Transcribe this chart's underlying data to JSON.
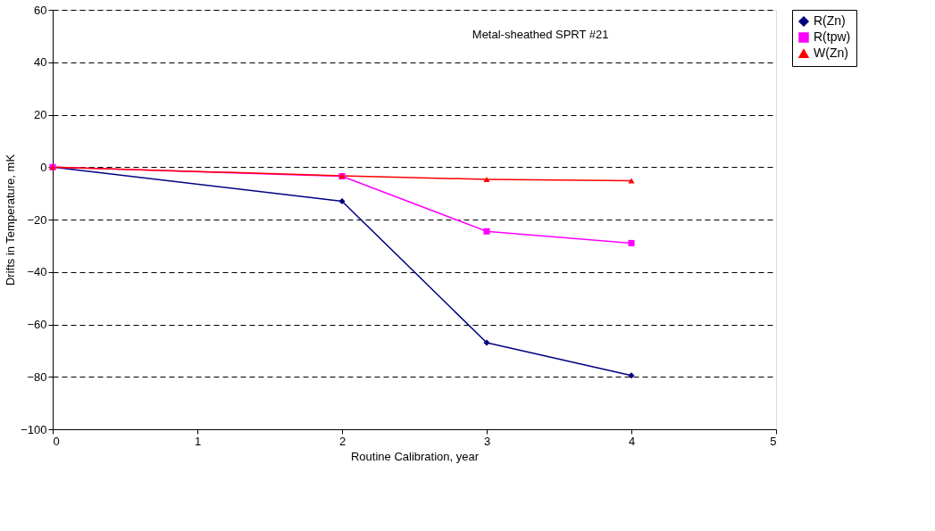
{
  "chart_data": {
    "type": "line",
    "xlabel": "Routine Calibration, year",
    "ylabel": "Drifts in Temperature, mK",
    "annotations": [
      "Metal-sheathed SPRT #21"
    ],
    "x": [
      0,
      2,
      3,
      4
    ],
    "series": [
      {
        "name": "R(Zn)",
        "color": "#000080",
        "values": [
          0,
          -13,
          -67,
          -79.5
        ],
        "marker": "diamond"
      },
      {
        "name": "R(tpw)",
        "color": "#ff00ff",
        "values": [
          0,
          -3.5,
          -24.5,
          -29
        ],
        "marker": "square"
      },
      {
        "name": "W(Zn)",
        "color": "#ff0000",
        "values": [
          0,
          -3.3,
          -4.7,
          -5.2
        ],
        "marker": "triangle"
      }
    ],
    "xlim": [
      0,
      5
    ],
    "xticks": [
      0,
      1,
      2,
      3,
      4,
      5
    ],
    "ylim": [
      -100,
      60
    ],
    "yticks": [
      -100,
      -80,
      -60,
      -40,
      -20,
      0,
      20,
      40,
      60
    ],
    "grid": "y",
    "legend": "right",
    "line_style": "solid"
  }
}
